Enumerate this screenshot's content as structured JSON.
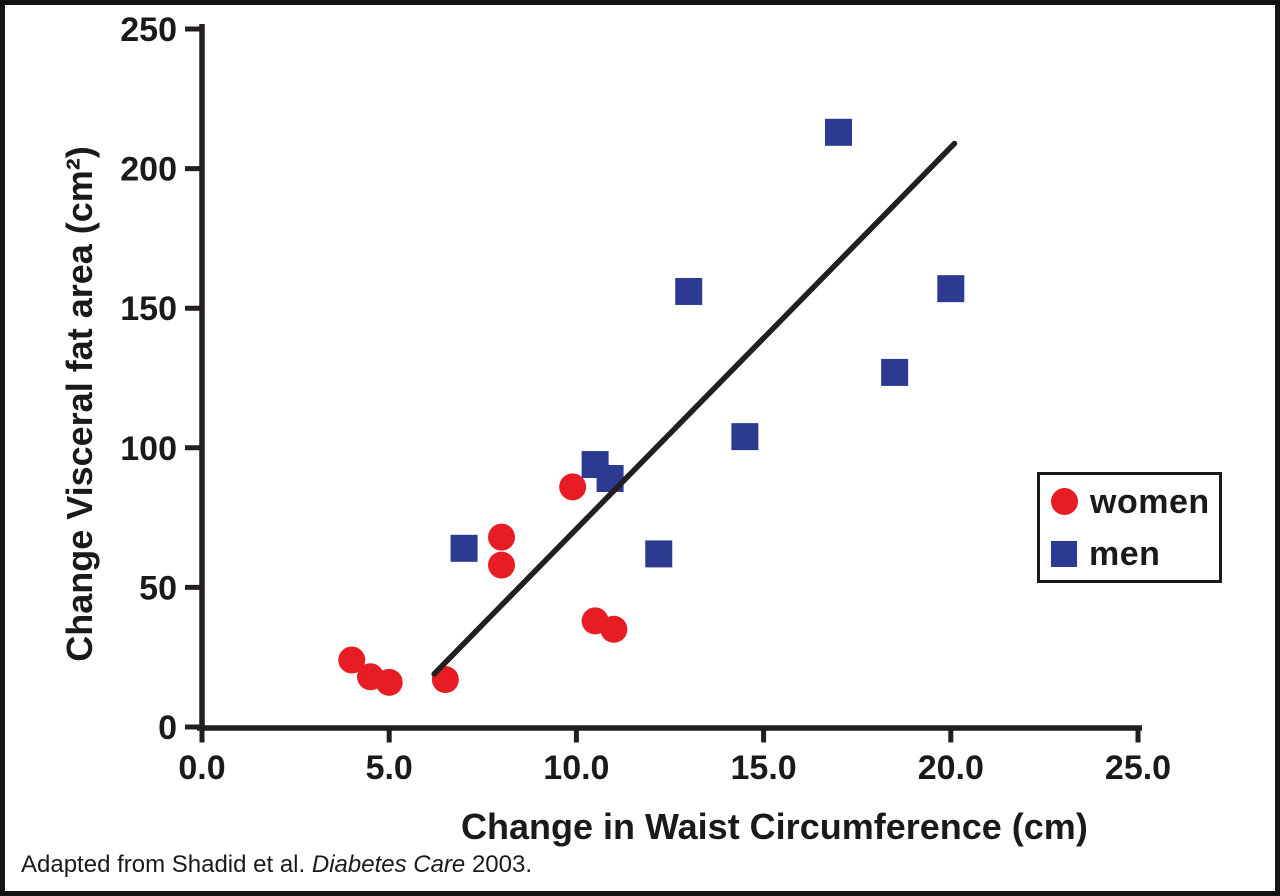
{
  "chart_data": {
    "type": "scatter",
    "title": "",
    "xlabel": "Change in Waist Circumference (cm)",
    "ylabel": "Change Visceral fat area (cm²)",
    "xlim": [
      0.0,
      25.0
    ],
    "ylim": [
      0,
      250
    ],
    "grid": false,
    "x_ticks": [
      {
        "value": 0,
        "label": "0.0"
      },
      {
        "value": 5,
        "label": "5.0"
      },
      {
        "value": 10,
        "label": "10.0"
      },
      {
        "value": 15,
        "label": "15.0"
      },
      {
        "value": 20,
        "label": "20.0"
      },
      {
        "value": 25,
        "label": "25.0"
      }
    ],
    "y_ticks": [
      {
        "value": 0,
        "label": "0"
      },
      {
        "value": 50,
        "label": "50"
      },
      {
        "value": 100,
        "label": "100"
      },
      {
        "value": 150,
        "label": "150"
      },
      {
        "value": 200,
        "label": "200"
      },
      {
        "value": 250,
        "label": "250"
      }
    ],
    "series": [
      {
        "name": "women",
        "marker": "circle",
        "color": "#e81c24",
        "points": [
          [
            4.0,
            24
          ],
          [
            4.5,
            18
          ],
          [
            5.0,
            16
          ],
          [
            6.5,
            17
          ],
          [
            8.0,
            68
          ],
          [
            8.0,
            58
          ],
          [
            9.9,
            86
          ],
          [
            10.5,
            38
          ],
          [
            11.0,
            35
          ]
        ]
      },
      {
        "name": "men",
        "marker": "square",
        "color": "#2c3a92",
        "points": [
          [
            7.0,
            64
          ],
          [
            10.5,
            94
          ],
          [
            10.9,
            89
          ],
          [
            12.2,
            62
          ],
          [
            13.0,
            156
          ],
          [
            14.5,
            104
          ],
          [
            17.0,
            213
          ],
          [
            18.5,
            127
          ],
          [
            20.0,
            157
          ]
        ]
      }
    ],
    "trend_line": {
      "start": [
        6.2,
        19
      ],
      "end": [
        20.1,
        209
      ]
    },
    "legend": {
      "position": "middle-right",
      "entries": [
        {
          "label": "women",
          "marker": "circle",
          "color": "#e81c24"
        },
        {
          "label": "men",
          "marker": "square",
          "color": "#2c3a92"
        }
      ]
    }
  },
  "caption": {
    "text_before": "Adapted from Shadid et al. ",
    "journal_italic": "Diabetes Care",
    "text_after": " 2003."
  },
  "colors": {
    "women": "#e81c24",
    "men": "#2c3a92",
    "axis": "#231f20",
    "trend_line": "#231f20",
    "text": "#1a1a1a",
    "background": "#ffffff"
  }
}
